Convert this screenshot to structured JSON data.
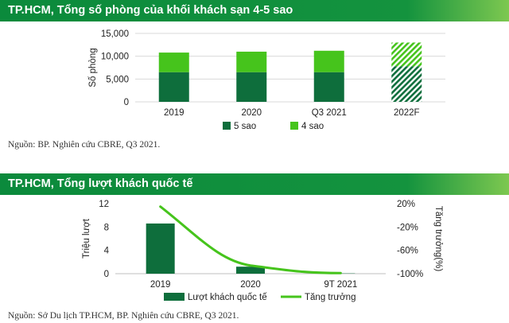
{
  "colors": {
    "banner": "#0b8a3c",
    "banner_light": "#6cc24a",
    "dark_green": "#0e6e3c",
    "light_green": "#46c41c",
    "grid": "#d9d9d9",
    "axis_text": "#222222"
  },
  "chart_data": [
    {
      "type": "bar",
      "stacked": true,
      "title": "TP.HCM, Tổng số phòng của khối khách sạn 4-5 sao",
      "ylabel": "Số phòng",
      "ylim": [
        0,
        15000
      ],
      "yticks": [
        0,
        5000,
        10000,
        15000
      ],
      "ytick_labels": [
        "0",
        "5,000",
        "10,000",
        "15,000"
      ],
      "categories": [
        "2019",
        "2020",
        "Q3 2021",
        "2022F"
      ],
      "forecast_category": "2022F",
      "series": [
        {
          "name": "5 sao",
          "values": [
            6500,
            6500,
            6500,
            7800
          ]
        },
        {
          "name": "4 sao",
          "values": [
            4300,
            4500,
            4700,
            5200
          ]
        }
      ],
      "legend": [
        "5 sao",
        "4 sao"
      ],
      "source": "Nguồn: BP. Nghiên cứu CBRE, Q3 2021."
    },
    {
      "type": "bar+line",
      "title": "TP.HCM, Tổng lượt khách quốc tế",
      "ylabel": "Triệu lượt",
      "y2label": "Tăng trưởng(%)",
      "ylim": [
        0,
        12
      ],
      "yticks": [
        0,
        4,
        8,
        12
      ],
      "ytick_labels": [
        "0",
        "4",
        "8",
        "12"
      ],
      "y2lim": [
        -100,
        20
      ],
      "y2ticks": [
        20,
        -20,
        -60,
        -100
      ],
      "y2tick_labels": [
        "20%",
        "-20%",
        "-60%",
        "-100%"
      ],
      "categories": [
        "2019",
        "2020",
        "9T 2021"
      ],
      "bars": {
        "name": "Lượt khách quốc tế",
        "values": [
          8.6,
          1.2,
          0.05
        ]
      },
      "line": {
        "name": "Tăng trưởng",
        "values": [
          15,
          -86,
          -99
        ]
      },
      "legend": [
        "Lượt khách quốc tế",
        "Tăng trưởng"
      ],
      "source": "Nguồn: Sở Du lịch TP.HCM, BP. Nghiên cứu CBRE, Q3 2021."
    }
  ]
}
